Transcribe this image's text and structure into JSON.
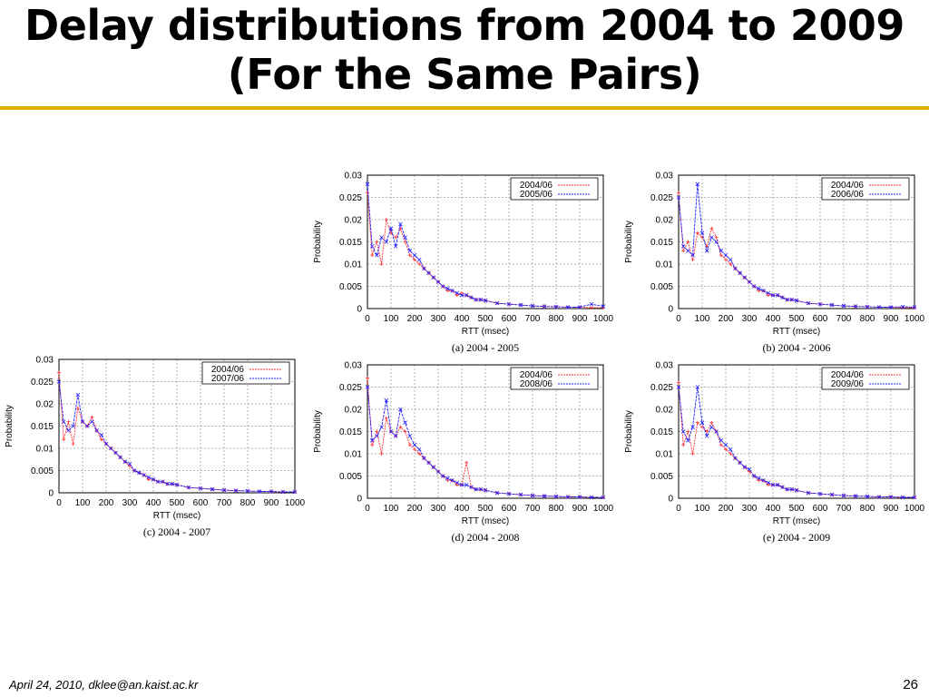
{
  "slide": {
    "title_line1": "Delay distributions from 2004 to 2009",
    "title_line2": "(For the Same Pairs)",
    "footer_left": "April 24, 2010, dklee@an.kaist.ac.kr",
    "page_number": "26"
  },
  "colors": {
    "series_2004": "#ff3030",
    "series_other": "#2020ff",
    "rule": "#e0b000",
    "grid": "#9a9a9a"
  },
  "chart_data": [
    {
      "type": "line",
      "caption": "(a) 2004 - 2005",
      "xlabel": "RTT (msec)",
      "ylabel": "Probability",
      "xlim": [
        0,
        1000
      ],
      "ylim": [
        0,
        0.03
      ],
      "xticks": [
        "0",
        "100",
        "200",
        "300",
        "400",
        "500",
        "600",
        "700",
        "800",
        "900",
        "1000"
      ],
      "yticks": [
        "0",
        "0.005",
        "0.01",
        "0.015",
        "0.02",
        "0.025",
        "0.03"
      ],
      "grid": true,
      "legend": "top-right",
      "series": [
        {
          "name": "2004/06",
          "x": [
            0,
            20,
            40,
            60,
            80,
            100,
            120,
            140,
            160,
            180,
            200,
            220,
            240,
            260,
            280,
            300,
            320,
            340,
            360,
            380,
            400,
            420,
            440,
            460,
            480,
            500,
            550,
            600,
            650,
            700,
            750,
            800,
            850,
            900,
            950,
            1000
          ],
          "y": [
            0.026,
            0.012,
            0.015,
            0.01,
            0.02,
            0.017,
            0.016,
            0.018,
            0.015,
            0.012,
            0.011,
            0.01,
            0.009,
            0.008,
            0.007,
            0.006,
            0.005,
            0.004,
            0.004,
            0.003,
            0.0035,
            0.003,
            0.0025,
            0.002,
            0.002,
            0.0018,
            0.0012,
            0.001,
            0.0008,
            0.0006,
            0.0005,
            0.0004,
            0.0003,
            0.0003,
            0.0002,
            0.0002
          ]
        },
        {
          "name": "2005/06",
          "x": [
            0,
            20,
            40,
            60,
            80,
            100,
            120,
            140,
            160,
            180,
            200,
            220,
            240,
            260,
            280,
            300,
            320,
            340,
            360,
            380,
            400,
            420,
            440,
            460,
            480,
            500,
            550,
            600,
            650,
            700,
            750,
            800,
            850,
            900,
            950,
            1000
          ],
          "y": [
            0.028,
            0.014,
            0.012,
            0.016,
            0.015,
            0.018,
            0.014,
            0.019,
            0.016,
            0.013,
            0.012,
            0.011,
            0.009,
            0.008,
            0.007,
            0.006,
            0.005,
            0.0045,
            0.004,
            0.0035,
            0.003,
            0.003,
            0.0025,
            0.002,
            0.002,
            0.0018,
            0.0012,
            0.001,
            0.0008,
            0.0006,
            0.0005,
            0.0004,
            0.0003,
            0.0003,
            0.001,
            0.0005
          ]
        }
      ]
    },
    {
      "type": "line",
      "caption": "(b) 2004 - 2006",
      "xlabel": "RTT (msec)",
      "ylabel": "Probability",
      "xlim": [
        0,
        1000
      ],
      "ylim": [
        0,
        0.03
      ],
      "xticks": [
        "0",
        "100",
        "200",
        "300",
        "400",
        "500",
        "600",
        "700",
        "800",
        "900",
        "1000"
      ],
      "yticks": [
        "0",
        "0.005",
        "0.01",
        "0.015",
        "0.02",
        "0.025",
        "0.03"
      ],
      "grid": true,
      "legend": "top-right",
      "series": [
        {
          "name": "2004/06",
          "x": [
            0,
            20,
            40,
            60,
            80,
            100,
            120,
            140,
            160,
            180,
            200,
            220,
            240,
            260,
            280,
            300,
            320,
            340,
            360,
            380,
            400,
            420,
            440,
            460,
            480,
            500,
            550,
            600,
            650,
            700,
            750,
            800,
            850,
            900,
            950,
            1000
          ],
          "y": [
            0.026,
            0.013,
            0.015,
            0.011,
            0.017,
            0.016,
            0.014,
            0.018,
            0.016,
            0.012,
            0.011,
            0.01,
            0.009,
            0.008,
            0.007,
            0.006,
            0.005,
            0.004,
            0.004,
            0.003,
            0.003,
            0.003,
            0.0025,
            0.002,
            0.002,
            0.0018,
            0.0012,
            0.001,
            0.0008,
            0.0006,
            0.0005,
            0.0004,
            0.0003,
            0.0003,
            0.0002,
            0.0002
          ]
        },
        {
          "name": "2006/06",
          "x": [
            0,
            20,
            40,
            60,
            80,
            100,
            120,
            140,
            160,
            180,
            200,
            220,
            240,
            260,
            280,
            300,
            320,
            340,
            360,
            380,
            400,
            420,
            440,
            460,
            480,
            500,
            550,
            600,
            650,
            700,
            750,
            800,
            850,
            900,
            950,
            1000
          ],
          "y": [
            0.025,
            0.014,
            0.013,
            0.012,
            0.028,
            0.017,
            0.013,
            0.016,
            0.015,
            0.013,
            0.012,
            0.011,
            0.009,
            0.008,
            0.007,
            0.006,
            0.005,
            0.0045,
            0.004,
            0.0035,
            0.003,
            0.003,
            0.0025,
            0.002,
            0.002,
            0.0018,
            0.0012,
            0.001,
            0.0008,
            0.0006,
            0.0005,
            0.0004,
            0.0003,
            0.0003,
            0.0004,
            0.0003
          ]
        }
      ]
    },
    {
      "type": "line",
      "caption": "(c) 2004 - 2007",
      "xlabel": "RTT (msec)",
      "ylabel": "Probability",
      "xlim": [
        0,
        1000
      ],
      "ylim": [
        0,
        0.03
      ],
      "xticks": [
        "0",
        "100",
        "200",
        "300",
        "400",
        "500",
        "600",
        "700",
        "800",
        "900",
        "1000"
      ],
      "yticks": [
        "0",
        "0.005",
        "0.01",
        "0.015",
        "0.02",
        "0.025",
        "0.03"
      ],
      "grid": true,
      "legend": "top-right",
      "series": [
        {
          "name": "2004/06",
          "x": [
            0,
            20,
            40,
            60,
            80,
            100,
            120,
            140,
            160,
            180,
            200,
            220,
            240,
            260,
            280,
            300,
            320,
            340,
            360,
            380,
            400,
            420,
            440,
            460,
            480,
            500,
            550,
            600,
            650,
            700,
            750,
            800,
            850,
            900,
            950,
            1000
          ],
          "y": [
            0.027,
            0.012,
            0.016,
            0.011,
            0.019,
            0.016,
            0.015,
            0.017,
            0.014,
            0.012,
            0.011,
            0.01,
            0.009,
            0.008,
            0.007,
            0.006,
            0.005,
            0.0045,
            0.004,
            0.003,
            0.003,
            0.0025,
            0.0025,
            0.002,
            0.002,
            0.0018,
            0.0012,
            0.001,
            0.0008,
            0.0006,
            0.0005,
            0.0004,
            0.0003,
            0.0003,
            0.0002,
            0.0002
          ]
        },
        {
          "name": "2007/06",
          "x": [
            0,
            20,
            40,
            60,
            80,
            100,
            120,
            140,
            160,
            180,
            200,
            220,
            240,
            260,
            280,
            300,
            320,
            340,
            360,
            380,
            400,
            420,
            440,
            460,
            480,
            500,
            550,
            600,
            650,
            700,
            750,
            800,
            850,
            900,
            950,
            1000
          ],
          "y": [
            0.025,
            0.016,
            0.014,
            0.015,
            0.022,
            0.016,
            0.015,
            0.016,
            0.014,
            0.013,
            0.011,
            0.01,
            0.009,
            0.008,
            0.007,
            0.0065,
            0.005,
            0.0045,
            0.004,
            0.0035,
            0.003,
            0.0025,
            0.0025,
            0.002,
            0.002,
            0.0018,
            0.0012,
            0.001,
            0.0008,
            0.0006,
            0.0005,
            0.0004,
            0.0003,
            0.0003,
            0.0002,
            0.0002
          ]
        }
      ]
    },
    {
      "type": "line",
      "caption": "(d) 2004 - 2008",
      "xlabel": "RTT (msec)",
      "ylabel": "Probability",
      "xlim": [
        0,
        1000
      ],
      "ylim": [
        0,
        0.03
      ],
      "xticks": [
        "0",
        "100",
        "200",
        "300",
        "400",
        "500",
        "600",
        "700",
        "800",
        "900",
        "1000"
      ],
      "yticks": [
        "0",
        "0.005",
        "0.01",
        "0.015",
        "0.02",
        "0.025",
        "0.03"
      ],
      "grid": true,
      "legend": "top-right",
      "series": [
        {
          "name": "2004/06",
          "x": [
            0,
            20,
            40,
            60,
            80,
            100,
            120,
            140,
            160,
            180,
            200,
            220,
            240,
            260,
            280,
            300,
            320,
            340,
            360,
            380,
            400,
            420,
            440,
            460,
            480,
            500,
            550,
            600,
            650,
            700,
            750,
            800,
            850,
            900,
            950,
            1000
          ],
          "y": [
            0.027,
            0.012,
            0.015,
            0.01,
            0.018,
            0.015,
            0.014,
            0.016,
            0.015,
            0.012,
            0.011,
            0.01,
            0.009,
            0.008,
            0.007,
            0.006,
            0.005,
            0.004,
            0.004,
            0.003,
            0.003,
            0.008,
            0.0025,
            0.002,
            0.002,
            0.0018,
            0.0012,
            0.001,
            0.0008,
            0.0006,
            0.0005,
            0.0004,
            0.0003,
            0.0003,
            0.0002,
            0.0002
          ]
        },
        {
          "name": "2008/06",
          "x": [
            0,
            20,
            40,
            60,
            80,
            100,
            120,
            140,
            160,
            180,
            200,
            220,
            240,
            260,
            280,
            300,
            320,
            340,
            360,
            380,
            400,
            420,
            440,
            460,
            480,
            500,
            550,
            600,
            650,
            700,
            750,
            800,
            850,
            900,
            950,
            1000
          ],
          "y": [
            0.025,
            0.013,
            0.014,
            0.016,
            0.022,
            0.015,
            0.014,
            0.02,
            0.017,
            0.014,
            0.012,
            0.011,
            0.009,
            0.008,
            0.007,
            0.006,
            0.005,
            0.0045,
            0.004,
            0.0035,
            0.003,
            0.003,
            0.0025,
            0.002,
            0.002,
            0.0018,
            0.0012,
            0.001,
            0.0008,
            0.0006,
            0.0005,
            0.0004,
            0.0003,
            0.0003,
            0.0002,
            0.0002
          ]
        }
      ]
    },
    {
      "type": "line",
      "caption": "(e) 2004 - 2009",
      "xlabel": "RTT (msec)",
      "ylabel": "Probability",
      "xlim": [
        0,
        1000
      ],
      "ylim": [
        0,
        0.03
      ],
      "xticks": [
        "0",
        "100",
        "200",
        "300",
        "400",
        "500",
        "600",
        "700",
        "800",
        "900",
        "1000"
      ],
      "yticks": [
        "0",
        "0.005",
        "0.01",
        "0.015",
        "0.02",
        "0.025",
        "0.03"
      ],
      "grid": true,
      "legend": "top-right",
      "series": [
        {
          "name": "2004/06",
          "x": [
            0,
            20,
            40,
            60,
            80,
            100,
            120,
            140,
            160,
            180,
            200,
            220,
            240,
            260,
            280,
            300,
            320,
            340,
            360,
            380,
            400,
            420,
            440,
            460,
            480,
            500,
            550,
            600,
            650,
            700,
            750,
            800,
            850,
            900,
            950,
            1000
          ],
          "y": [
            0.026,
            0.012,
            0.015,
            0.01,
            0.017,
            0.016,
            0.015,
            0.017,
            0.015,
            0.012,
            0.011,
            0.01,
            0.009,
            0.008,
            0.007,
            0.006,
            0.005,
            0.004,
            0.004,
            0.003,
            0.003,
            0.003,
            0.0025,
            0.002,
            0.002,
            0.0018,
            0.0012,
            0.001,
            0.0008,
            0.0006,
            0.0005,
            0.0004,
            0.0003,
            0.0003,
            0.0002,
            0.0002
          ]
        },
        {
          "name": "2009/06",
          "x": [
            0,
            20,
            40,
            60,
            80,
            100,
            120,
            140,
            160,
            180,
            200,
            220,
            240,
            260,
            280,
            300,
            320,
            340,
            360,
            380,
            400,
            420,
            440,
            460,
            480,
            500,
            550,
            600,
            650,
            700,
            750,
            800,
            850,
            900,
            950,
            1000
          ],
          "y": [
            0.025,
            0.015,
            0.013,
            0.016,
            0.025,
            0.017,
            0.014,
            0.016,
            0.015,
            0.013,
            0.012,
            0.011,
            0.009,
            0.008,
            0.007,
            0.0065,
            0.005,
            0.0045,
            0.004,
            0.0035,
            0.003,
            0.003,
            0.0025,
            0.002,
            0.002,
            0.0018,
            0.0012,
            0.001,
            0.0008,
            0.0006,
            0.0005,
            0.0004,
            0.0003,
            0.0003,
            0.0002,
            0.0002
          ]
        }
      ]
    }
  ]
}
